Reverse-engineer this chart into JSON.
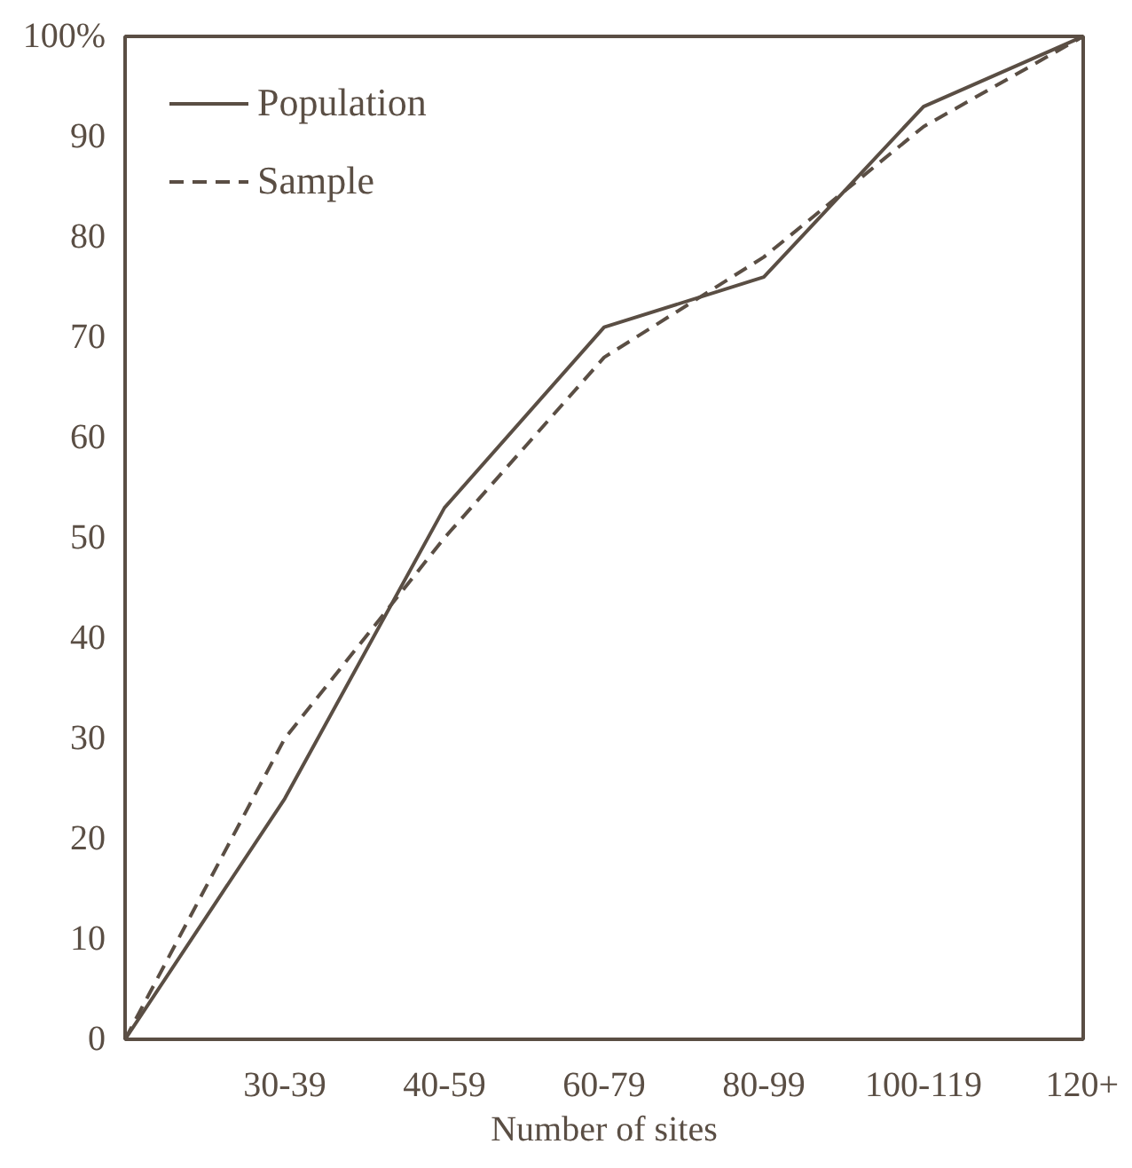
{
  "chart_data": {
    "type": "line",
    "xlabel": "Number of sites",
    "categories": [
      null,
      "30-39",
      "40-59",
      "60-79",
      "80-99",
      "100-119",
      "120+"
    ],
    "series": [
      {
        "name": "Population",
        "color": "#5a4e44",
        "line_style": "solid",
        "values": [
          0,
          24,
          53,
          71,
          76,
          93,
          100
        ]
      },
      {
        "name": "Sample",
        "color": "#5a4e44",
        "line_style": "dashed",
        "values": [
          0,
          30,
          50,
          68,
          78,
          91,
          100
        ]
      }
    ],
    "ylim": [
      0,
      100
    ],
    "yticks": [
      0,
      10,
      20,
      30,
      40,
      50,
      60,
      70,
      80,
      90,
      {
        "value": 100,
        "label": "100%"
      }
    ],
    "grid": false,
    "legend": "top left"
  }
}
